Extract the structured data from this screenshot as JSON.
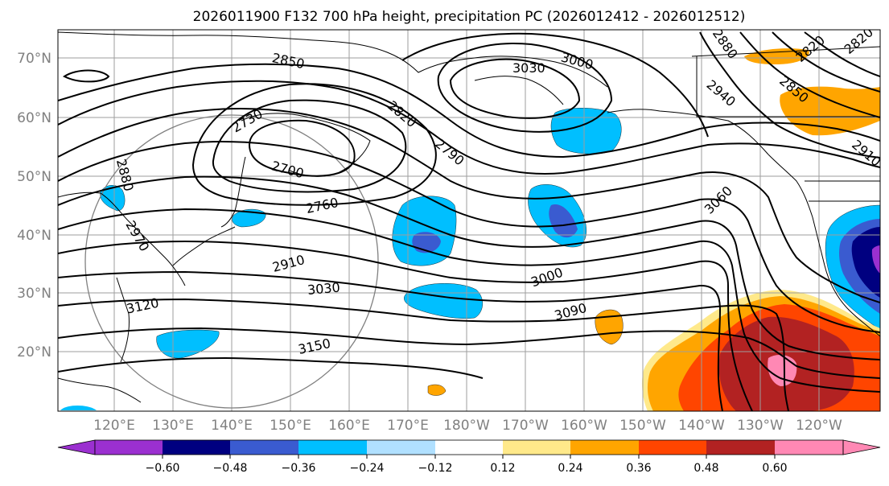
{
  "title": "2026011900 F132 700 hPa height, precipitation PC (2026012412 - 2026012512)",
  "lat_labels": [
    "70°N",
    "60°N",
    "50°N",
    "40°N",
    "30°N",
    "20°N"
  ],
  "lon_labels": [
    "120°E",
    "130°E",
    "140°E",
    "150°E",
    "160°E",
    "170°E",
    "180°W",
    "170°W",
    "160°W",
    "150°W",
    "140°W",
    "130°W",
    "120°W"
  ],
  "colorbar": {
    "ticks": [
      "−0.60",
      "−0.48",
      "−0.36",
      "−0.24",
      "−0.12",
      "0.12",
      "0.24",
      "0.36",
      "0.48",
      "0.60"
    ],
    "colors": [
      "#9b30d0",
      "#000080",
      "#3a5bd0",
      "#00bfff",
      "#b0e0ff",
      "#ffffff",
      "#ffe98a",
      "#ffa500",
      "#ff4500",
      "#b22222",
      "#ff88b4",
      "#ff88b4"
    ]
  },
  "contour_labels": [
    "2850",
    "3030",
    "3000",
    "2880",
    "2820",
    "2820",
    "2730",
    "2850",
    "2940",
    "2820",
    "2880",
    "2790",
    "2700",
    "2910",
    "2760",
    "3060",
    "2970",
    "2910",
    "3030",
    "3000",
    "3120",
    "3090",
    "3150"
  ],
  "colors": {
    "purple": "#9b30d0",
    "navy": "#000080",
    "royal": "#3a5bd0",
    "sky": "#00bfff",
    "light_blue": "#b0e0ff",
    "yellow": "#ffe98a",
    "orange": "#ffa500",
    "red_orange": "#ff4500",
    "dark_red": "#b22222",
    "pink": "#ff88b4"
  }
}
